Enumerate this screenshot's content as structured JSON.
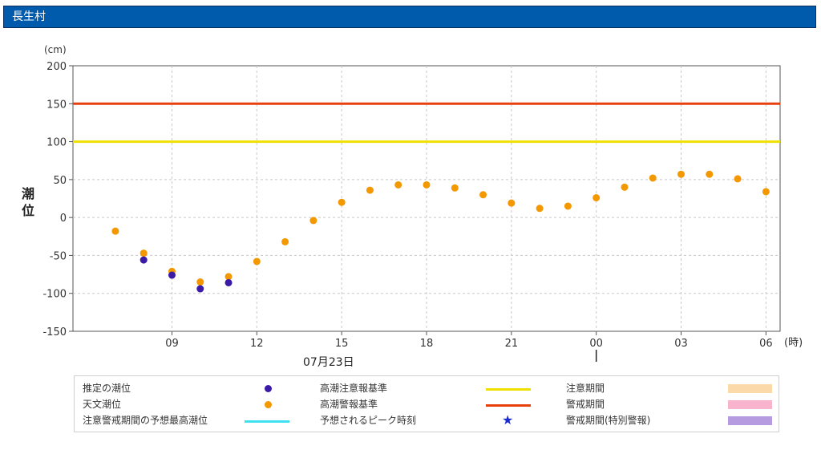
{
  "header": {
    "title": "長生村"
  },
  "chart_data": {
    "type": "scatter",
    "ylabel_unit": "(cm)",
    "ylabel": "潮位",
    "xlabel_unit": "(時)",
    "date_label": "07月23日",
    "ylim": [
      -150,
      200
    ],
    "yticks": [
      200,
      150,
      100,
      50,
      0,
      -50,
      -100,
      -150
    ],
    "xlim_hours": [
      6,
      30
    ],
    "xticks": [
      {
        "hour": 9,
        "label": "09"
      },
      {
        "hour": 12,
        "label": "12"
      },
      {
        "hour": 15,
        "label": "15"
      },
      {
        "hour": 18,
        "label": "18"
      },
      {
        "hour": 21,
        "label": "21"
      },
      {
        "hour": 24,
        "label": "00"
      },
      {
        "hour": 27,
        "label": "03"
      },
      {
        "hour": 30,
        "label": "06"
      }
    ],
    "grid": true,
    "reference_lines": [
      {
        "name": "高潮警報基準",
        "value": 150,
        "color": "#e8400c"
      },
      {
        "name": "高潮注意報基準",
        "value": 100,
        "color": "#f0e000"
      }
    ],
    "series": [
      {
        "name": "天文潮位",
        "color": "#f39800",
        "points": [
          {
            "hour": 7,
            "value": -18
          },
          {
            "hour": 8,
            "value": -47
          },
          {
            "hour": 9,
            "value": -71
          },
          {
            "hour": 10,
            "value": -85
          },
          {
            "hour": 11,
            "value": -78
          },
          {
            "hour": 12,
            "value": -58
          },
          {
            "hour": 13,
            "value": -32
          },
          {
            "hour": 14,
            "value": -4
          },
          {
            "hour": 15,
            "value": 20
          },
          {
            "hour": 16,
            "value": 36
          },
          {
            "hour": 17,
            "value": 43
          },
          {
            "hour": 18,
            "value": 43
          },
          {
            "hour": 19,
            "value": 39
          },
          {
            "hour": 20,
            "value": 30
          },
          {
            "hour": 21,
            "value": 19
          },
          {
            "hour": 22,
            "value": 12
          },
          {
            "hour": 23,
            "value": 15
          },
          {
            "hour": 24,
            "value": 26
          },
          {
            "hour": 25,
            "value": 40
          },
          {
            "hour": 26,
            "value": 52
          },
          {
            "hour": 27,
            "value": 57
          },
          {
            "hour": 28,
            "value": 57
          },
          {
            "hour": 29,
            "value": 51
          },
          {
            "hour": 30,
            "value": 34
          }
        ]
      },
      {
        "name": "推定の潮位",
        "color": "#3b1aa8",
        "points": [
          {
            "hour": 8,
            "value": -56
          },
          {
            "hour": 9,
            "value": -76
          },
          {
            "hour": 10,
            "value": -94
          },
          {
            "hour": 11,
            "value": -86
          }
        ]
      }
    ]
  },
  "legend": {
    "items": [
      {
        "label": "推定の潮位",
        "kind": "dot",
        "color": "#3b1aa8"
      },
      {
        "label": "高潮注意報基準",
        "kind": "line",
        "color": "#f0e000"
      },
      {
        "label": "注意期間",
        "kind": "rect",
        "color": "#fbd9a8"
      },
      {
        "label": "天文潮位",
        "kind": "dot",
        "color": "#f39800"
      },
      {
        "label": "高潮警報基準",
        "kind": "line",
        "color": "#e8400c"
      },
      {
        "label": "警戒期間",
        "kind": "rect",
        "color": "#f8b4cc"
      },
      {
        "label": "注意警戒期間の予想最高潮位",
        "kind": "line",
        "color": "#40e0f0"
      },
      {
        "label": "予想されるピーク時刻",
        "kind": "star",
        "color": "#1a2ad0",
        "symbol": "★"
      },
      {
        "label": "警戒期間(特別警報)",
        "kind": "rect",
        "color": "#b79be0"
      }
    ]
  }
}
